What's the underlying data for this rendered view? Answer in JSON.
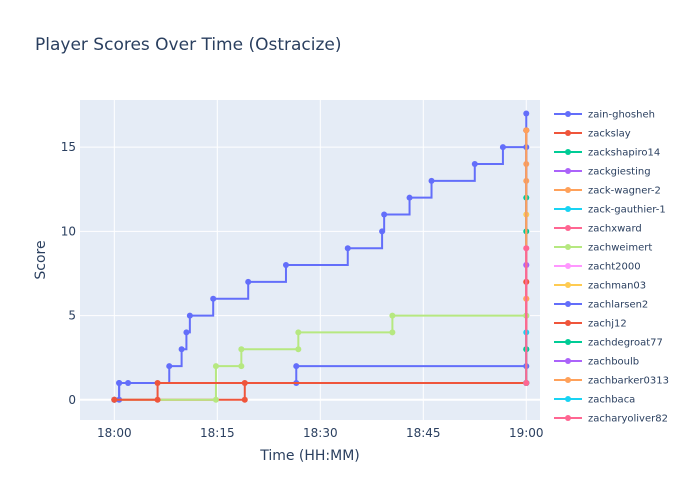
{
  "chart_data": {
    "type": "line",
    "title": "Player Scores Over Time (Ostracize)",
    "xlabel": "Time (HH:MM)",
    "ylabel": "Score",
    "line_shape": "step",
    "x_unit": "minutes after 18:00",
    "xlim": [
      -5,
      62
    ],
    "ylim": [
      -1.2,
      17.8
    ],
    "x_ticks": [
      {
        "value": 0,
        "label": "18:00"
      },
      {
        "value": 15,
        "label": "18:15"
      },
      {
        "value": 30,
        "label": "18:30"
      },
      {
        "value": 45,
        "label": "18:45"
      },
      {
        "value": 60,
        "label": "19:00"
      }
    ],
    "y_ticks": [
      0,
      5,
      10,
      15
    ],
    "grid": true,
    "legend_position": "right",
    "series": [
      {
        "name": "zain-ghosheh",
        "color": "#636efa",
        "points": [
          [
            0,
            0
          ],
          [
            0.7,
            1
          ],
          [
            2,
            1
          ],
          [
            8,
            2
          ],
          [
            9.8,
            3
          ],
          [
            10.5,
            4
          ],
          [
            11,
            5
          ],
          [
            14.4,
            6
          ],
          [
            19.5,
            7
          ],
          [
            25,
            8
          ],
          [
            34,
            9
          ],
          [
            39,
            10
          ],
          [
            39.3,
            11
          ],
          [
            43,
            12
          ],
          [
            46.2,
            13
          ],
          [
            52.5,
            14
          ],
          [
            56.6,
            15
          ],
          [
            60,
            16
          ],
          [
            60,
            17
          ]
        ]
      },
      {
        "name": "zackslay",
        "color": "#ef553b",
        "points": [
          [
            0,
            0
          ],
          [
            19,
            0
          ],
          [
            19,
            1
          ],
          [
            60,
            1
          ],
          [
            60,
            16
          ]
        ]
      },
      {
        "name": "zackshapiro14",
        "color": "#00cc96",
        "points": [
          [
            60,
            1
          ],
          [
            60,
            3
          ],
          [
            60,
            10
          ],
          [
            60,
            12
          ]
        ]
      },
      {
        "name": "zackgiesting",
        "color": "#ab63fa",
        "points": [
          [
            60,
            1
          ],
          [
            60,
            8
          ]
        ]
      },
      {
        "name": "zack-wagner-2",
        "color": "#ffa15a",
        "points": [
          [
            60,
            1
          ],
          [
            60,
            6
          ],
          [
            60,
            13
          ],
          [
            60,
            14
          ]
        ]
      },
      {
        "name": "zack-gauthier-1",
        "color": "#19d3f3",
        "points": [
          [
            60,
            1
          ],
          [
            60,
            5
          ]
        ]
      },
      {
        "name": "zachxward",
        "color": "#ff6692",
        "points": [
          [
            60,
            1
          ],
          [
            60,
            7
          ]
        ]
      },
      {
        "name": "zachweimert",
        "color": "#b6e880",
        "points": [
          [
            0,
            0
          ],
          [
            14.8,
            0
          ],
          [
            14.8,
            2
          ],
          [
            18.5,
            2
          ],
          [
            18.5,
            3
          ],
          [
            26.8,
            3
          ],
          [
            26.8,
            4
          ],
          [
            40.5,
            4
          ],
          [
            40.5,
            5
          ],
          [
            60,
            5
          ],
          [
            60,
            2
          ]
        ]
      },
      {
        "name": "zacht2000",
        "color": "#ff97ff",
        "points": [
          [
            60,
            1
          ],
          [
            60,
            9
          ]
        ]
      },
      {
        "name": "zachman03",
        "color": "#fecb52",
        "points": [
          [
            60,
            1
          ],
          [
            60,
            11
          ]
        ]
      },
      {
        "name": "zachlarsen2",
        "color": "#636efa",
        "points": [
          [
            0,
            0
          ],
          [
            0.7,
            0
          ],
          [
            0.7,
            1
          ],
          [
            26.5,
            1
          ],
          [
            26.5,
            2
          ],
          [
            60,
            2
          ],
          [
            60,
            15
          ]
        ]
      },
      {
        "name": "zachj12",
        "color": "#ef553b",
        "points": [
          [
            0,
            0
          ],
          [
            6.3,
            0
          ],
          [
            6.3,
            1
          ],
          [
            60,
            1
          ],
          [
            60,
            7
          ]
        ]
      },
      {
        "name": "zachdegroat77",
        "color": "#00cc96",
        "points": [
          [
            60,
            1
          ],
          [
            60,
            3
          ]
        ]
      },
      {
        "name": "zachboulb",
        "color": "#ab63fa",
        "points": [
          [
            60,
            1
          ],
          [
            60,
            8
          ]
        ]
      },
      {
        "name": "zachbarker0313",
        "color": "#ffa15a",
        "points": [
          [
            60,
            1
          ],
          [
            60,
            6
          ],
          [
            60,
            16
          ]
        ]
      },
      {
        "name": "zachbaca",
        "color": "#19d3f3",
        "points": [
          [
            60,
            1
          ],
          [
            60,
            4
          ]
        ]
      },
      {
        "name": "zacharyoliver82",
        "color": "#ff6692",
        "points": [
          [
            60,
            1
          ],
          [
            60,
            9
          ]
        ]
      }
    ]
  }
}
